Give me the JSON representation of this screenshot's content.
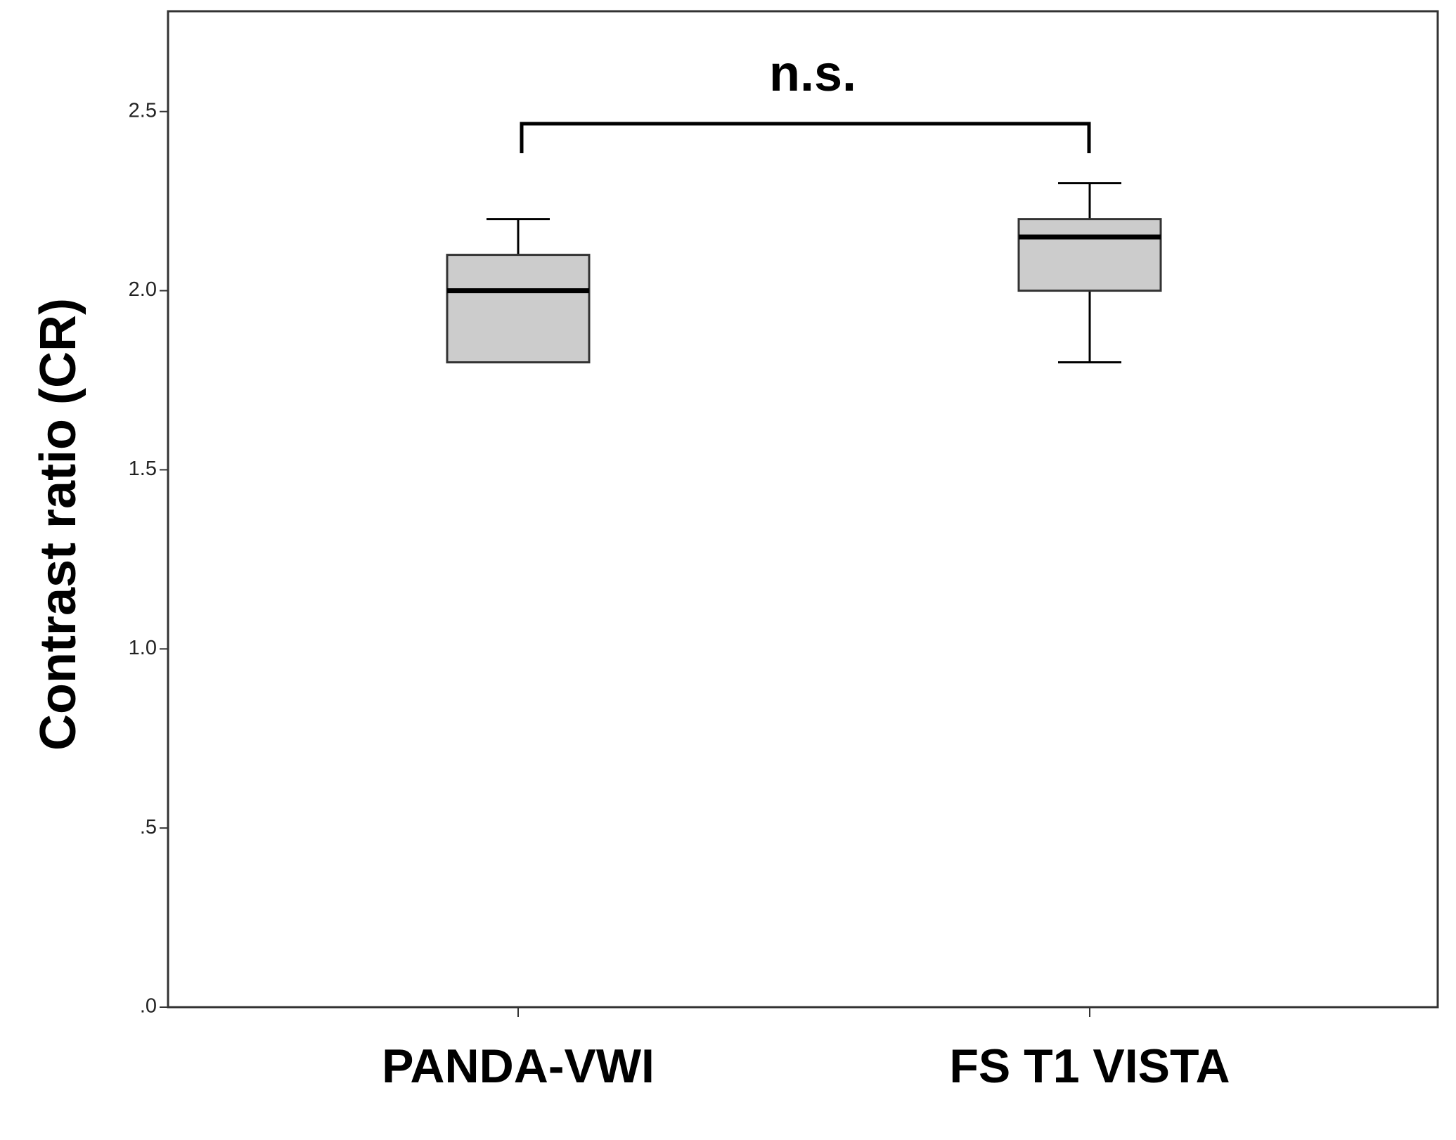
{
  "chart_data": {
    "type": "box",
    "y_label": "Contrast ratio (CR)",
    "annotation": "n.s.",
    "categories": [
      "PANDA-VWI",
      "FS T1 VISTA"
    ],
    "min": [
      1.8,
      1.8
    ],
    "q1": [
      1.8,
      2.0
    ],
    "median": [
      2.0,
      2.15
    ],
    "q3": [
      2.1,
      2.2
    ],
    "max": [
      2.2,
      2.3
    ],
    "color": "#cccccc",
    "ylim": [
      0,
      2.78
    ],
    "yticks": [
      {
        "value": 0,
        "label": ".0"
      },
      {
        "value": 0.5,
        "label": ".5"
      },
      {
        "value": 1.0,
        "label": "1.0"
      },
      1.5,
      {
        "value": 2.0,
        "label": "2.0"
      },
      2.5
    ],
    "grid": false
  }
}
